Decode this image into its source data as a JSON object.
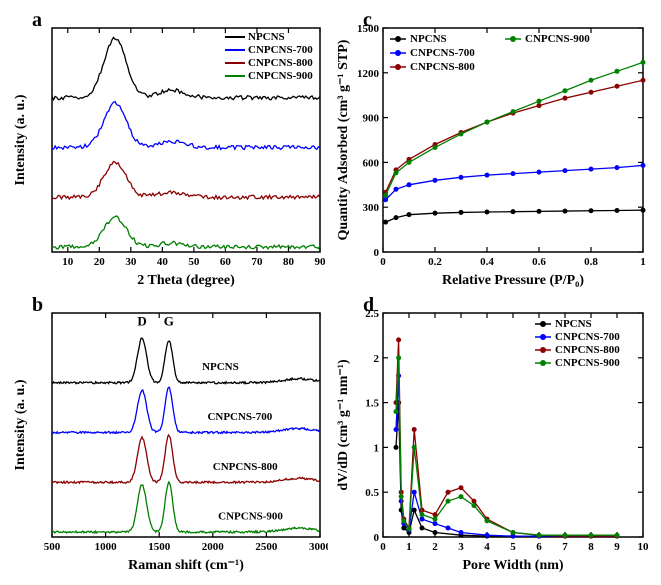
{
  "colors": {
    "npcns": "#000000",
    "c700": "#0000ff",
    "c800": "#8b0000",
    "c900": "#008000",
    "axis": "#000000",
    "bg": "#ffffff"
  },
  "series_names": {
    "npcns": "NPCNS",
    "c700": "CNPCNS-700",
    "c800": "CNPCNS-800",
    "c900": "CNPCNS-900"
  },
  "panel_a": {
    "letter": "a",
    "type": "line",
    "xlabel": "2 Theta (degree)",
    "ylabel": "Intensity (a. u.)",
    "xlim": [
      5,
      90
    ],
    "xticks": [
      10,
      20,
      30,
      40,
      50,
      60,
      70,
      80,
      90
    ],
    "curves": [
      {
        "key": "npcns",
        "offset": 3,
        "peak_x": 25,
        "peak_h": 1.2,
        "peak2_x": 43,
        "peak2_h": 0.15
      },
      {
        "key": "c700",
        "offset": 2,
        "peak_x": 25,
        "peak_h": 0.9,
        "peak2_x": 43,
        "peak2_h": 0.12
      },
      {
        "key": "c800",
        "offset": 1,
        "peak_x": 25,
        "peak_h": 0.7,
        "peak2_x": 43,
        "peak2_h": 0.1
      },
      {
        "key": "c900",
        "offset": 0,
        "peak_x": 25,
        "peak_h": 0.6,
        "peak2_x": 43,
        "peak2_h": 0.08
      }
    ]
  },
  "panel_b": {
    "letter": "b",
    "type": "line",
    "xlabel": "Raman shift (cm⁻¹)",
    "ylabel": "Intensity (a. u.)",
    "xlim": [
      500,
      3000
    ],
    "xticks": [
      500,
      1000,
      1500,
      2000,
      2500,
      3000
    ],
    "peak_labels": [
      {
        "text": "D",
        "x": 1340
      },
      {
        "text": "G",
        "x": 1590
      }
    ],
    "curves": [
      {
        "key": "npcns",
        "offset": 3,
        "d_h": 0.9,
        "g_h": 0.85
      },
      {
        "key": "c700",
        "offset": 2,
        "d_h": 0.85,
        "g_h": 0.9
      },
      {
        "key": "c800",
        "offset": 1,
        "d_h": 0.9,
        "g_h": 0.95
      },
      {
        "key": "c900",
        "offset": 0,
        "d_h": 0.95,
        "g_h": 1.0
      }
    ]
  },
  "panel_c": {
    "letter": "c",
    "type": "scatter-line",
    "xlabel": "Relative Pressure (P/P₀)",
    "ylabel": "Quantity Adsorbed (cm³ g⁻¹ STP)",
    "xlim": [
      0,
      1.0
    ],
    "ylim": [
      0,
      1500
    ],
    "xticks": [
      0.0,
      0.2,
      0.4,
      0.6,
      0.8,
      1.0
    ],
    "yticks": [
      0,
      300,
      600,
      900,
      1200,
      1500
    ],
    "series": [
      {
        "key": "npcns",
        "data": [
          [
            0.01,
            200
          ],
          [
            0.05,
            230
          ],
          [
            0.1,
            250
          ],
          [
            0.2,
            260
          ],
          [
            0.3,
            265
          ],
          [
            0.4,
            268
          ],
          [
            0.5,
            270
          ],
          [
            0.6,
            272
          ],
          [
            0.7,
            274
          ],
          [
            0.8,
            276
          ],
          [
            0.9,
            278
          ],
          [
            1.0,
            280
          ]
        ]
      },
      {
        "key": "c700",
        "data": [
          [
            0.01,
            350
          ],
          [
            0.05,
            420
          ],
          [
            0.1,
            450
          ],
          [
            0.2,
            480
          ],
          [
            0.3,
            500
          ],
          [
            0.4,
            515
          ],
          [
            0.5,
            525
          ],
          [
            0.6,
            535
          ],
          [
            0.7,
            545
          ],
          [
            0.8,
            555
          ],
          [
            0.9,
            565
          ],
          [
            1.0,
            580
          ]
        ]
      },
      {
        "key": "c800",
        "data": [
          [
            0.01,
            400
          ],
          [
            0.05,
            550
          ],
          [
            0.1,
            620
          ],
          [
            0.2,
            720
          ],
          [
            0.3,
            800
          ],
          [
            0.4,
            870
          ],
          [
            0.5,
            930
          ],
          [
            0.6,
            980
          ],
          [
            0.7,
            1030
          ],
          [
            0.8,
            1070
          ],
          [
            0.9,
            1110
          ],
          [
            1.0,
            1150
          ]
        ]
      },
      {
        "key": "c900",
        "data": [
          [
            0.01,
            380
          ],
          [
            0.05,
            530
          ],
          [
            0.1,
            600
          ],
          [
            0.2,
            700
          ],
          [
            0.3,
            790
          ],
          [
            0.4,
            870
          ],
          [
            0.5,
            940
          ],
          [
            0.6,
            1010
          ],
          [
            0.7,
            1080
          ],
          [
            0.8,
            1150
          ],
          [
            0.9,
            1210
          ],
          [
            1.0,
            1270
          ]
        ]
      }
    ]
  },
  "panel_d": {
    "letter": "d",
    "type": "scatter-line",
    "xlabel": "Pore Width (nm)",
    "ylabel": "dV/dD (cm³ g⁻¹ nm⁻¹)",
    "xlim": [
      0,
      10
    ],
    "ylim": [
      0,
      2.5
    ],
    "xticks": [
      0,
      1,
      2,
      3,
      4,
      5,
      6,
      7,
      8,
      9,
      10
    ],
    "yticks": [
      0.0,
      0.5,
      1.0,
      1.5,
      2.0,
      2.5
    ],
    "series": [
      {
        "key": "npcns",
        "data": [
          [
            0.5,
            1.0
          ],
          [
            0.6,
            1.5
          ],
          [
            0.7,
            0.3
          ],
          [
            0.8,
            0.1
          ],
          [
            1.0,
            0.05
          ],
          [
            1.2,
            0.3
          ],
          [
            1.5,
            0.1
          ],
          [
            2,
            0.05
          ],
          [
            3,
            0.02
          ],
          [
            4,
            0.01
          ],
          [
            5,
            0.01
          ],
          [
            6,
            0.01
          ],
          [
            7,
            0.01
          ],
          [
            8,
            0.01
          ],
          [
            9,
            0.01
          ]
        ]
      },
      {
        "key": "c700",
        "data": [
          [
            0.5,
            1.2
          ],
          [
            0.6,
            1.8
          ],
          [
            0.7,
            0.4
          ],
          [
            0.8,
            0.15
          ],
          [
            1.0,
            0.08
          ],
          [
            1.2,
            0.5
          ],
          [
            1.5,
            0.2
          ],
          [
            2,
            0.15
          ],
          [
            2.5,
            0.1
          ],
          [
            3,
            0.05
          ],
          [
            4,
            0.02
          ],
          [
            5,
            0.01
          ],
          [
            6,
            0.01
          ],
          [
            7,
            0.01
          ],
          [
            8,
            0.01
          ],
          [
            9,
            0.01
          ]
        ]
      },
      {
        "key": "c800",
        "data": [
          [
            0.5,
            1.5
          ],
          [
            0.6,
            2.2
          ],
          [
            0.7,
            0.5
          ],
          [
            0.8,
            0.2
          ],
          [
            1.0,
            0.1
          ],
          [
            1.2,
            1.2
          ],
          [
            1.5,
            0.3
          ],
          [
            2,
            0.25
          ],
          [
            2.5,
            0.5
          ],
          [
            3,
            0.55
          ],
          [
            3.5,
            0.4
          ],
          [
            4,
            0.2
          ],
          [
            5,
            0.05
          ],
          [
            6,
            0.02
          ],
          [
            7,
            0.01
          ],
          [
            8,
            0.01
          ],
          [
            9,
            0.01
          ]
        ]
      },
      {
        "key": "c900",
        "data": [
          [
            0.5,
            1.4
          ],
          [
            0.6,
            2.0
          ],
          [
            0.7,
            0.45
          ],
          [
            0.8,
            0.18
          ],
          [
            1.0,
            0.09
          ],
          [
            1.2,
            1.0
          ],
          [
            1.5,
            0.25
          ],
          [
            2,
            0.2
          ],
          [
            2.5,
            0.4
          ],
          [
            3,
            0.45
          ],
          [
            3.5,
            0.35
          ],
          [
            4,
            0.18
          ],
          [
            5,
            0.05
          ],
          [
            6,
            0.02
          ],
          [
            7,
            0.02
          ],
          [
            8,
            0.02
          ],
          [
            9,
            0.02
          ]
        ]
      }
    ]
  }
}
